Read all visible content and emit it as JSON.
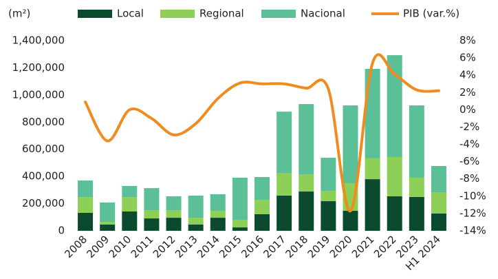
{
  "chart_data": {
    "type": "bar",
    "y_label": "(m²)",
    "categories": [
      "2008",
      "2009",
      "2010",
      "2011",
      "2012",
      "2013",
      "2014",
      "2015",
      "2016",
      "2017",
      "2018",
      "2019",
      "2020",
      "2021",
      "2022",
      "2023",
      "H1 2024"
    ],
    "series": [
      {
        "name": "Local",
        "color": "#0b4a2f",
        "values": [
          132000,
          46000,
          142000,
          91000,
          96000,
          46000,
          96000,
          25000,
          122000,
          259000,
          289000,
          218000,
          147000,
          380000,
          254000,
          249000,
          127000
        ]
      },
      {
        "name": "Regional",
        "color": "#8dcf57",
        "values": [
          116000,
          20000,
          106000,
          61000,
          56000,
          50000,
          51000,
          56000,
          106000,
          167000,
          127000,
          76000,
          203000,
          153000,
          289000,
          142000,
          157000
        ]
      },
      {
        "name": "Nacional",
        "color": "#5bbf97",
        "values": [
          122000,
          142000,
          82000,
          162000,
          102000,
          163000,
          122000,
          310000,
          168000,
          451000,
          517000,
          244000,
          573000,
          659000,
          750000,
          532000,
          193000
        ]
      },
      {
        "name": "PIB (var.%)",
        "color": "#f08c1e",
        "type": "line",
        "axis": "y2",
        "values": [
          0.9,
          -3.6,
          0.0,
          -1.0,
          -2.9,
          -1.6,
          1.3,
          3.1,
          3.0,
          3.0,
          2.5,
          2.4,
          -11.7,
          5.4,
          4.1,
          2.3,
          2.2
        ]
      }
    ],
    "stacked": true,
    "ylim": [
      0,
      1400000
    ],
    "yticks": [
      0,
      {
        "value": 200000,
        "label": "200,000"
      },
      {
        "value": 400000,
        "label": "400,000"
      },
      {
        "value": 600000,
        "label": "600,000"
      },
      {
        "value": 800000,
        "label": "800,000"
      },
      {
        "value": 1000000,
        "label": "1,000,000"
      },
      {
        "value": 1200000,
        "label": "1,200,000"
      },
      {
        "value": 1400000,
        "label": "1,400,000"
      }
    ],
    "y2lim": [
      -14,
      8
    ],
    "y2ticks": [
      {
        "value": -14,
        "label": "-14%"
      },
      {
        "value": -12,
        "label": "-12%"
      },
      {
        "value": -10,
        "label": "-10%"
      },
      {
        "value": -8,
        "label": "-8%"
      },
      {
        "value": -6,
        "label": "-6%"
      },
      {
        "value": -4,
        "label": "-4%"
      },
      {
        "value": -2,
        "label": "-2%"
      },
      {
        "value": 0,
        "label": "0%"
      },
      {
        "value": 2,
        "label": "2%"
      },
      {
        "value": 4,
        "label": "4%"
      },
      {
        "value": 6,
        "label": "6%"
      },
      {
        "value": 8,
        "label": "8%"
      }
    ],
    "legend": "top"
  }
}
